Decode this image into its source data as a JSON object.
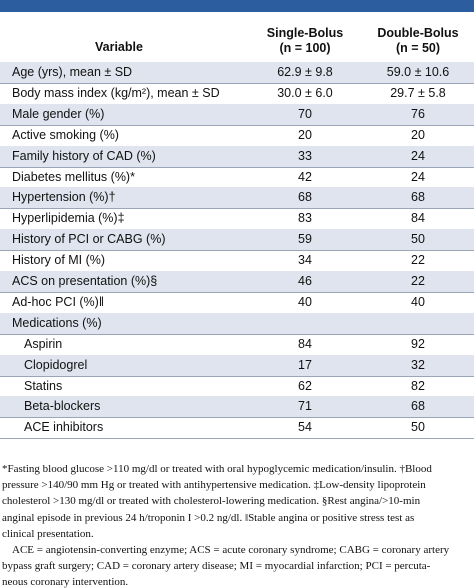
{
  "table": {
    "header": [
      "Variable",
      [
        "Single-Bolus",
        "(n = 100)"
      ],
      [
        "Double-Bolus",
        "(n = 50)"
      ]
    ],
    "rows": [
      [
        "Age (yrs), mean ± SD",
        "62.9 ± 9.8",
        "59.0 ± 10.6"
      ],
      [
        "Body mass index (kg/m²), mean ± SD",
        "30.0 ± 6.0",
        "29.7 ± 5.8"
      ],
      [
        "Male gender (%)",
        "70",
        "76"
      ],
      [
        "Active smoking (%)",
        "20",
        "20"
      ],
      [
        "Family history of CAD (%)",
        "33",
        "24"
      ],
      [
        "Diabetes mellitus (%)*",
        "42",
        "24"
      ],
      [
        "Hypertension (%)†",
        "68",
        "68"
      ],
      [
        "Hyperlipidemia (%)‡",
        "83",
        "84"
      ],
      [
        "History of PCI or CABG (%)",
        "59",
        "50"
      ],
      [
        "History of MI (%)",
        "34",
        "22"
      ],
      [
        "ACS on presentation (%)§",
        "46",
        "22"
      ],
      [
        "Ad-hoc PCI (%)‖",
        "40",
        "40"
      ]
    ],
    "medications": {
      "label": "Medications (%)",
      "rows": [
        [
          "Aspirin",
          "84",
          "92"
        ],
        [
          "Clopidogrel",
          "17",
          "32"
        ],
        [
          "Statins",
          "62",
          "82"
        ],
        [
          "Beta-blockers",
          "71",
          "68"
        ],
        [
          "ACE inhibitors",
          "54",
          "50"
        ]
      ]
    }
  },
  "footnotes": [
    "*Fasting blood glucose >110 mg/dl or treated with oral hypoglycemic medication/insulin. †Blood",
    "pressure >140/90 mm Hg or treated with antihypertensive medication. ‡Low-density lipoprotein",
    "cholesterol >130 mg/dl or treated with cholesterol-lowering medication. §Rest angina/>10-min",
    "anginal episode in previous 24 h/troponin I >0.2 ng/dl. ‖Stable angina or positive stress test as",
    "clinical presentation."
  ],
  "abbreviations": [
    "ACE = angiotensin-converting enzyme; ACS = acute coronary syndrome; CABG = coronary artery",
    "bypass graft surgery; CAD = coronary artery disease; MI = myocardial infarction; PCI = percuta-",
    "neous coronary intervention."
  ]
}
